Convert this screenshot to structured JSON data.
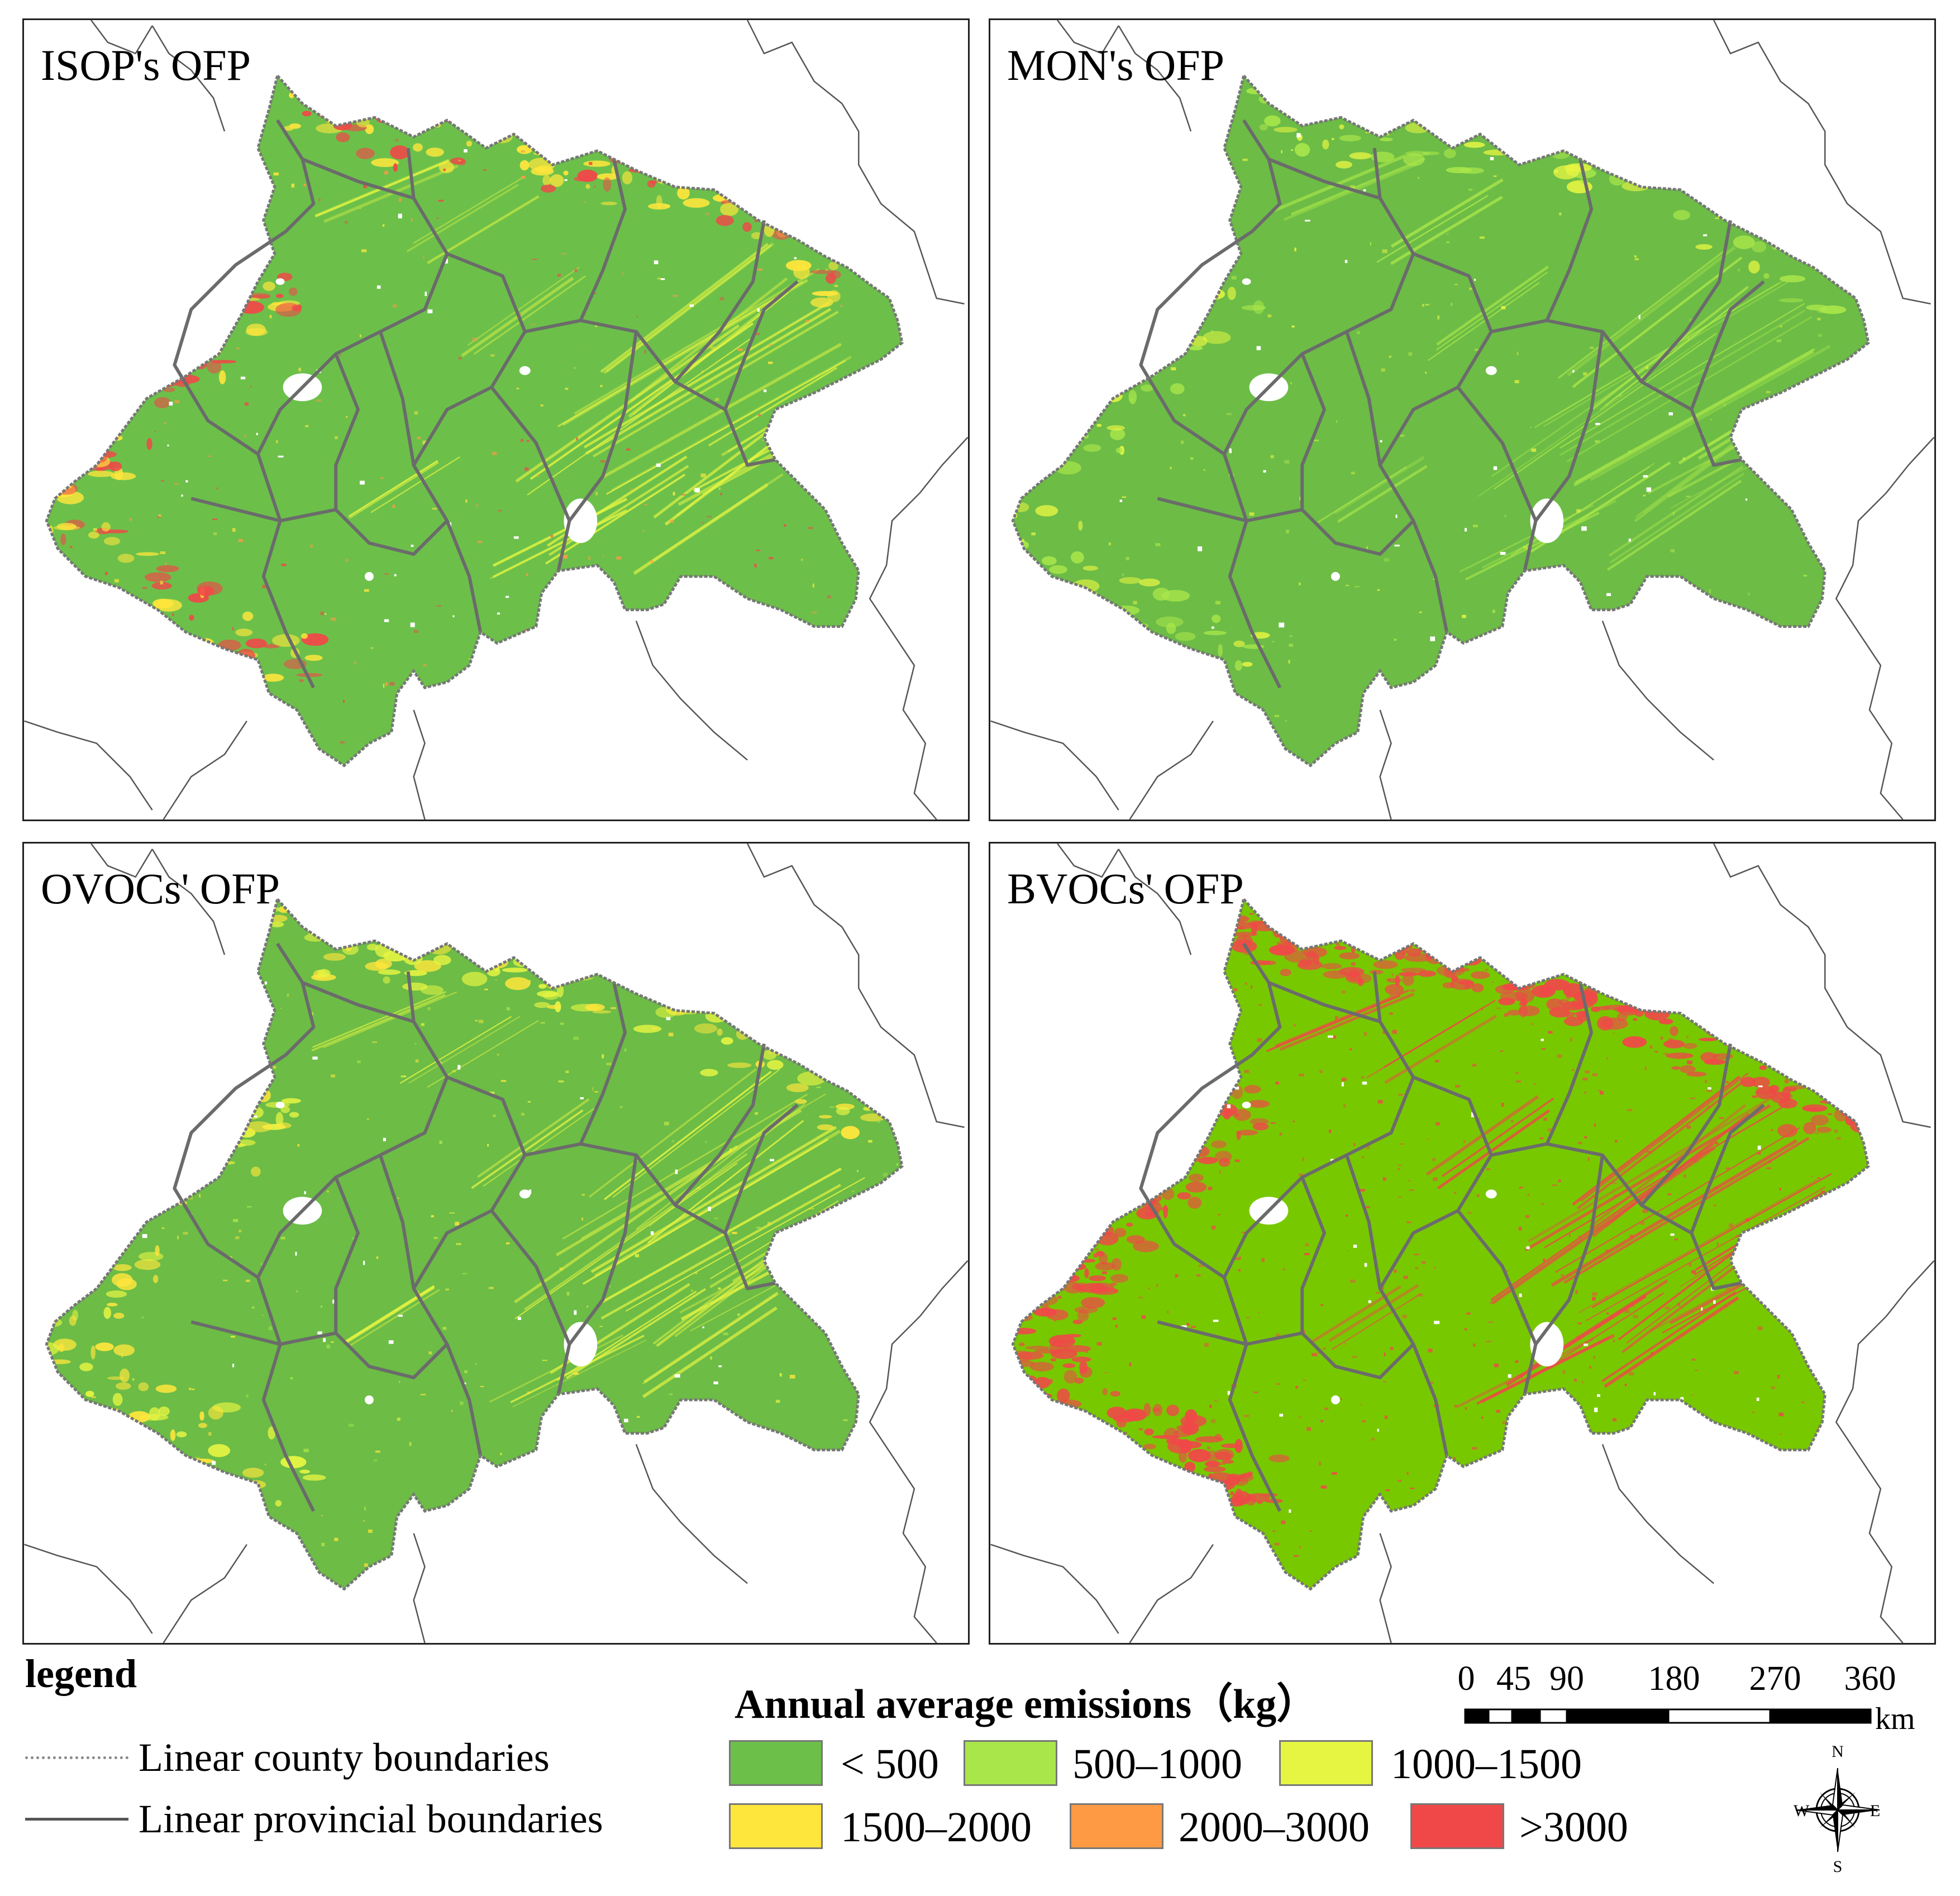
{
  "panels": [
    {
      "title": "ISOP's OFP",
      "scheme": "isop"
    },
    {
      "title": "MON's OFP",
      "scheme": "mon"
    },
    {
      "title": "OVOCs' OFP",
      "scheme": "ovoc"
    },
    {
      "title": "BVOCs' OFP",
      "scheme": "bvoc"
    }
  ],
  "legend": {
    "title": "legend",
    "county_label": "Linear county boundaries",
    "provincial_label": "Linear provincial boundaries",
    "emissions_title": "Annual average emissions（kg）",
    "classes": [
      {
        "label": "< 500",
        "color": "#6cc04a"
      },
      {
        "label": "500–1000",
        "color": "#a9e64a"
      },
      {
        "label": "1000–1500",
        "color": "#e6f542"
      },
      {
        "label": "1500–2000",
        "color": "#ffe63c"
      },
      {
        "label": "2000–3000",
        "color": "#ff9a44"
      },
      {
        "label": ">3000",
        "color": "#f04848"
      }
    ]
  },
  "scale_bar": {
    "ticks": [
      "0",
      "45",
      "90",
      "180",
      "270",
      "360"
    ],
    "unit": "km"
  },
  "compass": {
    "n": "N",
    "s": "S",
    "e": "E",
    "w": "W"
  }
}
